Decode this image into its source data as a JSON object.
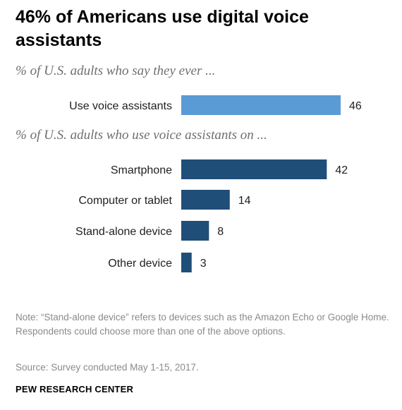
{
  "chart_data": {
    "type": "bar",
    "orientation": "horizontal",
    "title": "46% of Americans use digital voice assistants",
    "groups": [
      {
        "subtitle": "% of U.S. adults who say they ever ...",
        "color": "#5b9bd5",
        "categories": [
          "Use voice assistants"
        ],
        "values": [
          46
        ]
      },
      {
        "subtitle": "% of U.S. adults who use voice assistants on ...",
        "color": "#1f4e79",
        "categories": [
          "Smartphone",
          "Computer or tablet",
          "Stand-alone device",
          "Other device"
        ],
        "values": [
          42,
          14,
          8,
          3
        ]
      }
    ],
    "grid": false,
    "legend": "none"
  },
  "note": "Note: “Stand-alone device” refers to devices such as the Amazon Echo or Google Home. Respondents could choose more than one of the above options.",
  "source": "Source: Survey conducted May 1-15, 2017.",
  "brand": "PEW RESEARCH CENTER"
}
